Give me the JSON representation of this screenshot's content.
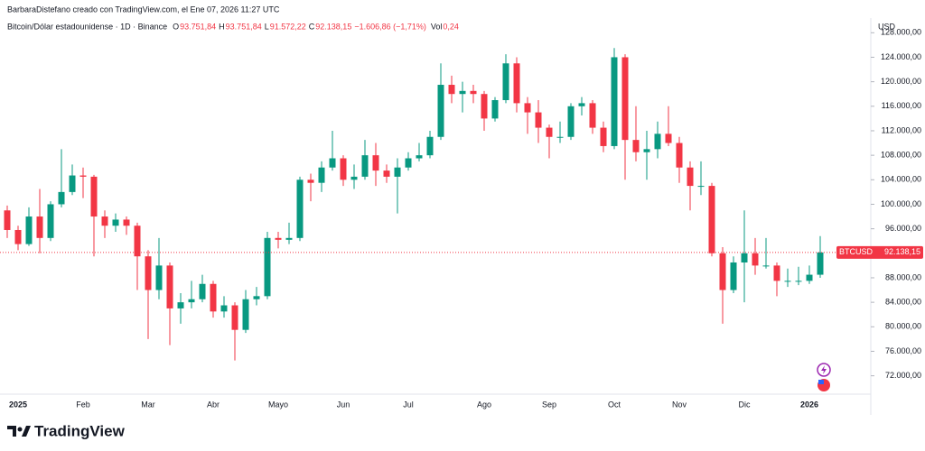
{
  "header": {
    "credit": "BarbaraDistefano creado con TradingView.com, el Ene 07, 2026 11:27 UTC",
    "symbol": "Bitcoin/Dólar estadounidense · 1D · Binance",
    "fields": [
      {
        "key": "O",
        "value": "93.751,84"
      },
      {
        "key": "H",
        "value": "93.751,84"
      },
      {
        "key": "L",
        "value": "91.572,22"
      },
      {
        "key": "C",
        "value": "92.138,15"
      }
    ],
    "change": "−1.606,86 (−1,71%)",
    "vol_key": "Vol",
    "vol": "0,24",
    "currency": "USD",
    "logo": "TradingView"
  },
  "chart_data": {
    "type": "candlestick",
    "ticker": "BTCUSD",
    "up_color": "#089981",
    "down_color": "#f23645",
    "last_price": {
      "value": 92138.15,
      "label": "92.138,15"
    },
    "categories": [
      null,
      "2025",
      null,
      null,
      null,
      null,
      null,
      "Feb",
      null,
      null,
      null,
      null,
      null,
      "Mar",
      null,
      null,
      null,
      null,
      null,
      "Abr",
      null,
      null,
      null,
      null,
      null,
      "Mayo",
      null,
      null,
      null,
      null,
      null,
      "Jun",
      null,
      null,
      null,
      null,
      null,
      "Jul",
      null,
      null,
      null,
      null,
      null,
      null,
      "Ago",
      null,
      null,
      null,
      null,
      null,
      "Sep",
      null,
      null,
      null,
      null,
      null,
      "Oct",
      null,
      null,
      null,
      null,
      null,
      "Nov",
      null,
      null,
      null,
      null,
      null,
      "Dic",
      null,
      null,
      null,
      null,
      null,
      "2026",
      null
    ],
    "open": [
      99000,
      95800,
      93500,
      98000,
      94500,
      100000,
      102000,
      104700,
      104500,
      98000,
      96500,
      97500,
      96500,
      91500,
      86000,
      90000,
      83000,
      84000,
      84500,
      87000,
      82500,
      83500,
      79500,
      84500,
      85000,
      94500,
      94200,
      94500,
      104000,
      103500,
      106000,
      107500,
      104000,
      104500,
      108000,
      105500,
      104500,
      106000,
      107500,
      108000,
      111000,
      119500,
      118000,
      118500,
      118000,
      114000,
      117000,
      123000,
      116500,
      115000,
      112500,
      111000,
      111000,
      116000,
      116500,
      112500,
      109500,
      124000,
      110500,
      108500,
      109000,
      111500,
      110000,
      106000,
      103000,
      103000,
      92000,
      86000,
      90500,
      92000,
      90000,
      90000,
      87500,
      87500,
      87500,
      88500
    ],
    "high": [
      99800,
      96500,
      99500,
      102500,
      100500,
      109000,
      106500,
      106000,
      104800,
      99000,
      98500,
      98000,
      97000,
      92500,
      94500,
      90500,
      85500,
      87500,
      88500,
      87500,
      85000,
      84000,
      86000,
      86500,
      95500,
      95500,
      97000,
      104500,
      105000,
      107000,
      112000,
      108000,
      106500,
      110500,
      110000,
      106500,
      107500,
      108500,
      110000,
      112000,
      123000,
      121000,
      120000,
      119500,
      118500,
      117500,
      124500,
      124000,
      117500,
      117000,
      113000,
      113500,
      116500,
      117500,
      117000,
      113500,
      125500,
      124500,
      116000,
      112000,
      113500,
      116000,
      111000,
      107000,
      107000,
      103500,
      93000,
      91500,
      99000,
      94500,
      94500,
      90500,
      89500,
      89800,
      90000,
      94800
    ],
    "low": [
      94500,
      92500,
      93200,
      92000,
      94000,
      99500,
      101500,
      101000,
      91500,
      94500,
      95500,
      95000,
      86000,
      78000,
      84500,
      77000,
      80500,
      83000,
      84000,
      81500,
      81500,
      74500,
      79000,
      83500,
      84500,
      92800,
      93500,
      94000,
      100500,
      102000,
      105500,
      103000,
      102500,
      104000,
      103000,
      103500,
      98500,
      105500,
      107000,
      107500,
      110500,
      116500,
      115000,
      116500,
      112000,
      113500,
      116500,
      115000,
      111500,
      110000,
      107500,
      110000,
      110500,
      114500,
      111500,
      108500,
      109000,
      104000,
      107000,
      104000,
      107500,
      109500,
      103500,
      99000,
      101500,
      91500,
      80500,
      85500,
      84000,
      88500,
      89500,
      85000,
      86500,
      86800,
      87000,
      88000
    ],
    "close": [
      95800,
      93500,
      98000,
      94500,
      100000,
      102000,
      104700,
      104500,
      98000,
      96500,
      97500,
      96500,
      91500,
      86000,
      90000,
      83000,
      84000,
      84500,
      87000,
      82500,
      83500,
      79500,
      84500,
      85000,
      94500,
      94200,
      94500,
      104000,
      103500,
      106000,
      107500,
      104000,
      104500,
      108000,
      105500,
      104500,
      106000,
      107500,
      108000,
      111000,
      119500,
      118000,
      118500,
      118000,
      114000,
      117000,
      123000,
      116500,
      115000,
      112500,
      111000,
      111000,
      116000,
      116500,
      112500,
      109500,
      124000,
      110500,
      108500,
      109000,
      111500,
      110000,
      106000,
      103000,
      103000,
      92000,
      86000,
      90500,
      92000,
      90000,
      90000,
      87500,
      87500,
      87500,
      88500,
      92138.15
    ],
    "ylim": [
      69000,
      130400
    ],
    "yticks": [
      {
        "value": 72000,
        "label": "72.000,00"
      },
      {
        "value": 76000,
        "label": "76.000,00"
      },
      {
        "value": 80000,
        "label": "80.000,00"
      },
      {
        "value": 84000,
        "label": "84.000,00"
      },
      {
        "value": 88000,
        "label": "88.000,00"
      },
      {
        "value": 92000,
        "label": "92.000,00"
      },
      {
        "value": 96000,
        "label": "96.000,00"
      },
      {
        "value": 100000,
        "label": "100.000,00"
      },
      {
        "value": 104000,
        "label": "104.000,00"
      },
      {
        "value": 108000,
        "label": "108.000,00"
      },
      {
        "value": 112000,
        "label": "112.000,00"
      },
      {
        "value": 116000,
        "label": "116.000,00"
      },
      {
        "value": 120000,
        "label": "120.000,00"
      },
      {
        "value": 124000,
        "label": "124.000,00"
      },
      {
        "value": 128000,
        "label": "128.000,00"
      }
    ]
  }
}
